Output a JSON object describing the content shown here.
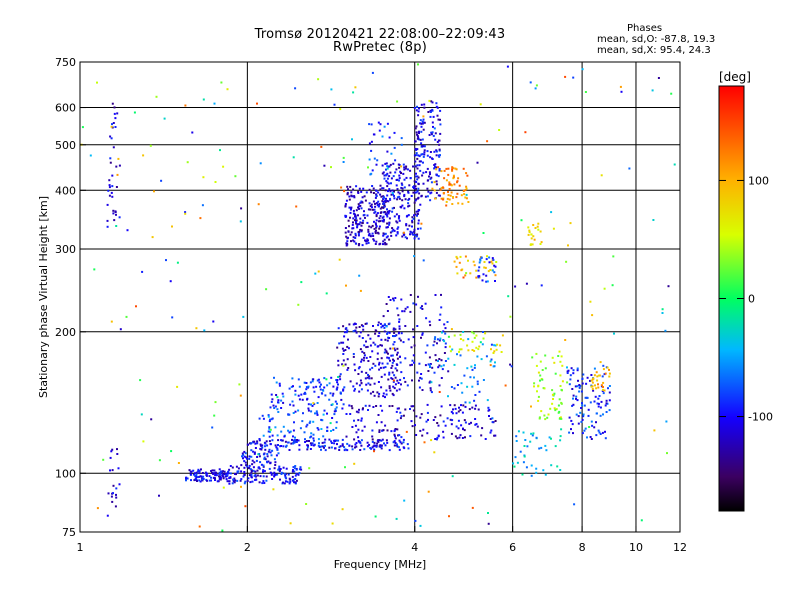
{
  "chart_data": {
    "type": "scatter",
    "title": "Tromsø 20120421 22:08:00–22:09:43",
    "subtitle": "RwPretec (8p)",
    "xlabel": "Frequency [MHz]",
    "ylabel": "Stationary phase Virtual Height [km]",
    "x_scale": "log",
    "y_scale": "log",
    "xlim": [
      1,
      12
    ],
    "ylim": [
      75,
      750
    ],
    "x_ticks": [
      1,
      2,
      4,
      6,
      8,
      10,
      12
    ],
    "y_ticks": [
      75,
      100,
      200,
      300,
      400,
      500,
      600,
      750
    ],
    "x_grid": [
      2,
      4,
      6,
      8,
      10
    ],
    "y_grid": [
      100,
      200,
      300,
      400,
      500,
      600
    ],
    "grid": true,
    "stats": {
      "heading": "Phases",
      "line_o": "mean, sd,O: -87.8, 19.3",
      "line_x": "mean, sd,X:  95.4, 24.3"
    },
    "colorbar": {
      "label": "[deg]",
      "range": [
        -180,
        180
      ],
      "ticks": [
        -100,
        0,
        100
      ],
      "colormap": "rainbow"
    },
    "clusters": [
      {
        "x": [
          1.55,
          1.85
        ],
        "y": [
          96,
          102
        ],
        "n": 110,
        "phase": -105
      },
      {
        "x": [
          1.85,
          2.5
        ],
        "y": [
          95,
          104
        ],
        "n": 140,
        "phase": -100
      },
      {
        "x": [
          1.95,
          2.3
        ],
        "y": [
          104,
          112
        ],
        "n": 50,
        "phase": -95
      },
      {
        "x": [
          2.0,
          3.9
        ],
        "y": [
          112,
          118
        ],
        "n": 180,
        "phase": -100
      },
      {
        "x": [
          2.1,
          2.9
        ],
        "y": [
          118,
          135
        ],
        "n": 70,
        "phase": -75
      },
      {
        "x": [
          2.2,
          3.0
        ],
        "y": [
          135,
          160
        ],
        "n": 110,
        "phase": -85
      },
      {
        "x": [
          3.0,
          5.6
        ],
        "y": [
          118,
          140
        ],
        "n": 160,
        "phase": -115
      },
      {
        "x": [
          2.9,
          3.8
        ],
        "y": [
          145,
          210
        ],
        "n": 200,
        "phase": -110
      },
      {
        "x": [
          3.5,
          4.6
        ],
        "y": [
          150,
          240
        ],
        "n": 130,
        "phase": -110
      },
      {
        "x": [
          4.2,
          5.6
        ],
        "y": [
          140,
          200
        ],
        "n": 60,
        "phase": -60
      },
      {
        "x": [
          4.6,
          5.8
        ],
        "y": [
          180,
          200
        ],
        "n": 30,
        "phase": 60
      },
      {
        "x": [
          3.0,
          3.6
        ],
        "y": [
          305,
          410
        ],
        "n": 240,
        "phase": -115
      },
      {
        "x": [
          3.5,
          4.1
        ],
        "y": [
          315,
          460
        ],
        "n": 200,
        "phase": -110
      },
      {
        "x": [
          4.0,
          4.45
        ],
        "y": [
          380,
          620
        ],
        "n": 160,
        "phase": -105
      },
      {
        "x": [
          3.3,
          3.8
        ],
        "y": [
          420,
          560
        ],
        "n": 30,
        "phase": -80
      },
      {
        "x": [
          4.3,
          5.0
        ],
        "y": [
          370,
          450
        ],
        "n": 70,
        "phase": 115
      },
      {
        "x": [
          4.7,
          5.6
        ],
        "y": [
          260,
          290
        ],
        "n": 30,
        "phase": 90
      },
      {
        "x": [
          5.2,
          5.6
        ],
        "y": [
          255,
          290
        ],
        "n": 25,
        "phase": -80
      },
      {
        "x": [
          6.5,
          7.4
        ],
        "y": [
          130,
          180
        ],
        "n": 60,
        "phase": 40
      },
      {
        "x": [
          7.5,
          9.0
        ],
        "y": [
          118,
          170
        ],
        "n": 110,
        "phase": -90
      },
      {
        "x": [
          8.3,
          9.0
        ],
        "y": [
          150,
          175
        ],
        "n": 30,
        "phase": 100
      },
      {
        "x": [
          6.0,
          7.4
        ],
        "y": [
          98,
          125
        ],
        "n": 40,
        "phase": -40
      },
      {
        "x": [
          6.4,
          6.8
        ],
        "y": [
          305,
          340
        ],
        "n": 20,
        "phase": 70
      },
      {
        "x": [
          1.12,
          1.18
        ],
        "y": [
          330,
          620
        ],
        "n": 35,
        "phase": -110
      },
      {
        "x": [
          1.12,
          1.18
        ],
        "y": [
          80,
          120
        ],
        "n": 20,
        "phase": -110
      }
    ],
    "scatter_noise": {
      "n": 230,
      "phase_range": [
        -140,
        150
      ]
    }
  }
}
